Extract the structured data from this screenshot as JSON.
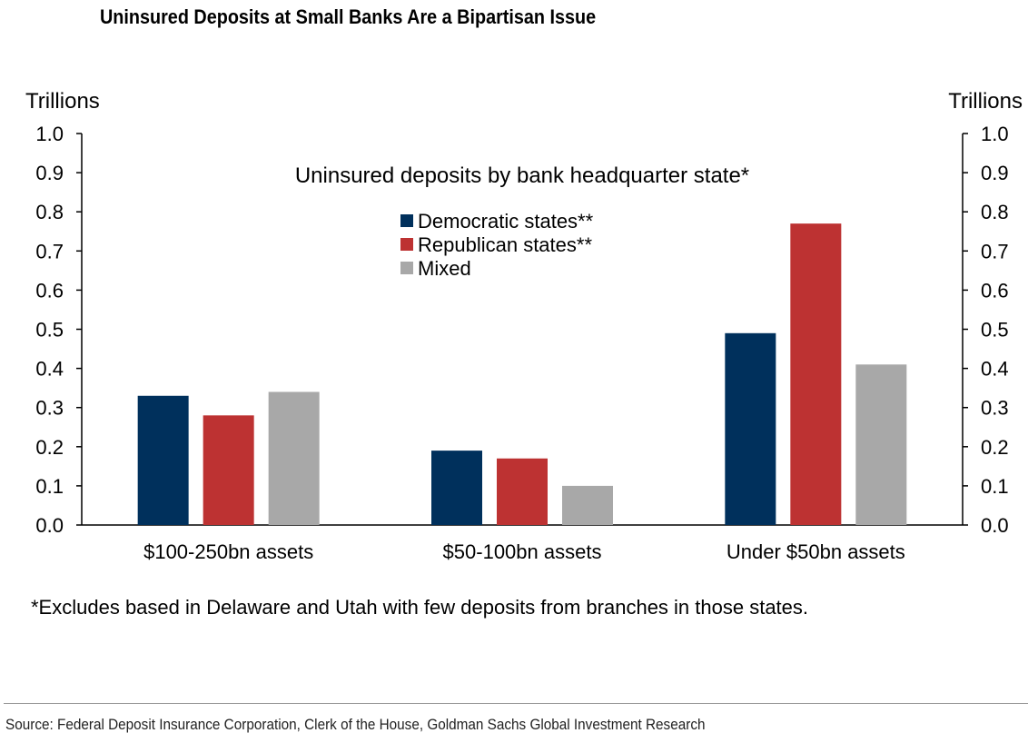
{
  "title": "Uninsured Deposits at Small Banks Are a Bipartisan Issue",
  "footnote": "*Excludes based in Delaware and Utah with few deposits from branches in those states.",
  "source": "Source: Federal Deposit Insurance Corporation, Clerk of the House, Goldman Sachs Global Investment Research",
  "chart_data": {
    "type": "bar",
    "subtitle": "Uninsured deposits by bank headquarter state*",
    "ylabel_left": "Trillions",
    "ylabel_right": "Trillions",
    "ylim": [
      0,
      1.0
    ],
    "yticks": [
      "0.0",
      "0.1",
      "0.2",
      "0.3",
      "0.4",
      "0.5",
      "0.6",
      "0.7",
      "0.8",
      "0.9",
      "1.0"
    ],
    "grid": false,
    "legend_position": "top-center",
    "categories": [
      "$100-250bn assets",
      "$50-100bn assets",
      "Under $50bn assets"
    ],
    "series": [
      {
        "name": "Democratic states**",
        "color": "#00305c",
        "values": [
          0.33,
          0.19,
          0.49
        ]
      },
      {
        "name": "Republican states**",
        "color": "#bd3232",
        "values": [
          0.28,
          0.17,
          0.77
        ]
      },
      {
        "name": "Mixed",
        "color": "#a8a8a8",
        "values": [
          0.34,
          0.1,
          0.41
        ]
      }
    ]
  }
}
